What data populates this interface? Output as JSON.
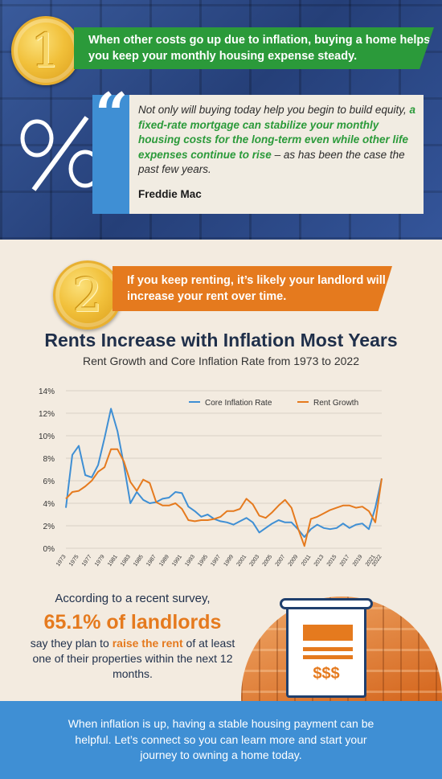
{
  "section1": {
    "number": "1",
    "banner": "When other costs go up due to inflation, buying a home helps you keep your monthly housing expense steady.",
    "quote_mark": "“",
    "quote_part1": "Not only will buying today help you begin to build equity, ",
    "quote_highlight": "a fixed-rate mortgage can stabilize your monthly housing costs for the long-term even while other life expenses continue to rise",
    "quote_part2": " – as has been the case the past few years.",
    "quote_author": "Freddie Mac"
  },
  "section2": {
    "number": "2",
    "banner": "If you keep renting, it’s likely your landlord will increase your rent over time."
  },
  "chart_data": {
    "type": "line",
    "title": "Rents Increase with Inflation Most Years",
    "subtitle": "Rent Growth and Core Inflation Rate from 1973 to 2022",
    "xlabel": "",
    "ylabel": "",
    "ylim": [
      0,
      14
    ],
    "yticks": [
      "0%",
      "2%",
      "4%",
      "6%",
      "8%",
      "10%",
      "12%",
      "14%"
    ],
    "xticks": [
      "1973",
      "1975",
      "1977",
      "1979",
      "1981",
      "1983",
      "1985",
      "1987",
      "1989",
      "1991",
      "1993",
      "1995",
      "1997",
      "1999",
      "2001",
      "2003",
      "2005",
      "2007",
      "2009",
      "2011",
      "2013",
      "2015",
      "2017",
      "2019",
      "2021",
      "2022"
    ],
    "grid": true,
    "legend_position": "top-right",
    "x": [
      1973,
      1974,
      1975,
      1976,
      1977,
      1978,
      1979,
      1980,
      1981,
      1982,
      1983,
      1984,
      1985,
      1986,
      1987,
      1988,
      1989,
      1990,
      1991,
      1992,
      1993,
      1994,
      1995,
      1996,
      1997,
      1998,
      1999,
      2000,
      2001,
      2002,
      2003,
      2004,
      2005,
      2006,
      2007,
      2008,
      2009,
      2010,
      2011,
      2012,
      2013,
      2014,
      2015,
      2016,
      2017,
      2018,
      2019,
      2020,
      2021,
      2022
    ],
    "series": [
      {
        "name": "Core Inflation Rate",
        "color": "#3f8fd4",
        "values": [
          3.6,
          8.3,
          9.1,
          6.5,
          6.3,
          7.4,
          9.8,
          12.4,
          10.4,
          7.4,
          4.0,
          5.0,
          4.3,
          4.0,
          4.1,
          4.4,
          4.5,
          5.0,
          4.9,
          3.7,
          3.3,
          2.8,
          3.0,
          2.6,
          2.4,
          2.3,
          2.1,
          2.4,
          2.7,
          2.3,
          1.4,
          1.8,
          2.2,
          2.5,
          2.3,
          2.3,
          1.7,
          1.0,
          1.7,
          2.1,
          1.8,
          1.7,
          1.8,
          2.2,
          1.8,
          2.1,
          2.2,
          1.7,
          3.6,
          6.2
        ]
      },
      {
        "name": "Rent Growth",
        "color": "#e57a1e",
        "values": [
          4.4,
          5.0,
          5.1,
          5.5,
          6.0,
          6.8,
          7.2,
          8.8,
          8.8,
          7.7,
          5.9,
          5.1,
          6.1,
          5.8,
          4.1,
          3.8,
          3.8,
          4.0,
          3.5,
          2.5,
          2.4,
          2.5,
          2.5,
          2.6,
          2.8,
          3.3,
          3.3,
          3.5,
          4.4,
          3.9,
          2.9,
          2.7,
          3.2,
          3.8,
          4.3,
          3.6,
          1.8,
          0.2,
          2.6,
          2.8,
          3.1,
          3.4,
          3.6,
          3.8,
          3.8,
          3.6,
          3.7,
          3.3,
          2.3,
          6.2
        ]
      }
    ]
  },
  "survey": {
    "line1": "According to a recent survey,",
    "big": "65.1% of landlords",
    "line3a": "say they plan to ",
    "line3b": "raise the rent",
    "line3c": " of at least one of their properties within the next 12 months.",
    "money": "$$$"
  },
  "footer": {
    "text": "When inflation is up, having a stable housing payment can be helpful. Let’s connect so you can learn more and start your journey to owning a home today."
  },
  "colors": {
    "blue": "#3f8fd4",
    "orange": "#e57a1e",
    "green": "#2b9a3a",
    "navy": "#1f2f4a",
    "gold": "#f1c03a"
  }
}
